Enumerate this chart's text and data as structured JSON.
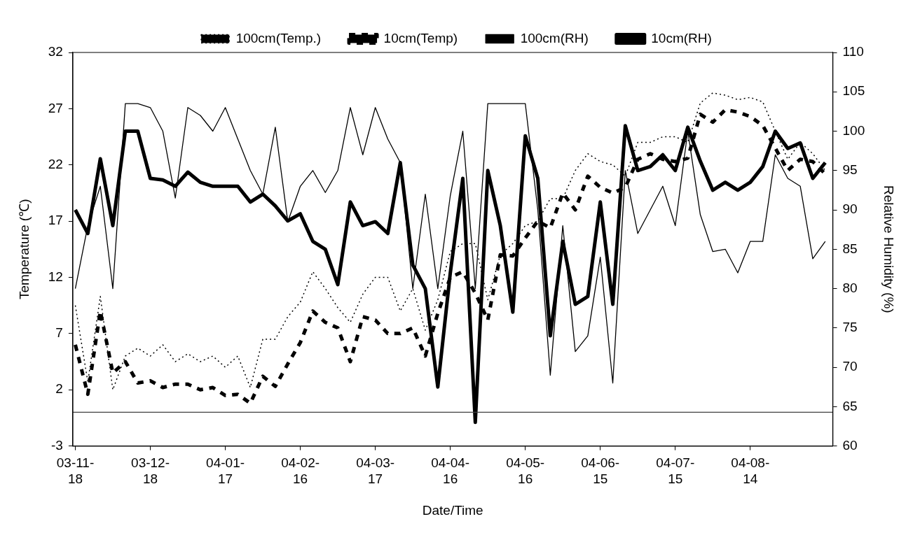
{
  "chart_data": {
    "type": "line",
    "xlabel": "Date/Time",
    "ylabel": "Temperature (℃)",
    "y2label": "Relative Humidity (%)",
    "x": [
      "2003-11-18",
      "2003-11-23",
      "2003-11-28",
      "2003-12-03",
      "2003-12-08",
      "2003-12-13",
      "2003-12-18",
      "2003-12-23",
      "2003-12-28",
      "2004-01-02",
      "2004-01-07",
      "2004-01-12",
      "2004-01-17",
      "2004-01-22",
      "2004-01-27",
      "2004-02-01",
      "2004-02-06",
      "2004-02-11",
      "2004-02-16",
      "2004-02-21",
      "2004-02-26",
      "2004-03-02",
      "2004-03-07",
      "2004-03-12",
      "2004-03-17",
      "2004-03-22",
      "2004-03-27",
      "2004-04-01",
      "2004-04-06",
      "2004-04-11",
      "2004-04-16",
      "2004-04-21",
      "2004-04-26",
      "2004-05-01",
      "2004-05-06",
      "2004-05-11",
      "2004-05-16",
      "2004-05-21",
      "2004-05-26",
      "2004-05-31",
      "2004-06-05",
      "2004-06-10",
      "2004-06-15",
      "2004-06-20",
      "2004-06-25",
      "2004-06-30",
      "2004-07-05",
      "2004-07-10",
      "2004-07-15",
      "2004-07-20",
      "2004-07-25",
      "2004-07-30",
      "2004-08-04",
      "2004-08-09",
      "2004-08-14",
      "2004-08-19",
      "2004-08-24",
      "2004-08-29",
      "2004-09-03",
      "2004-09-08",
      "2004-09-13"
    ],
    "series": [
      {
        "name": "100cm(Temp.)",
        "color": "#000000",
        "line_style": "dotted",
        "values": [
          9.5,
          2.7,
          10.3,
          2,
          5,
          5.7,
          5,
          6,
          4.5,
          5.2,
          4.5,
          5,
          4,
          5,
          2.2,
          6.5,
          6.5,
          8.5,
          9.8,
          12.5,
          11,
          9.3,
          8,
          10.5,
          12,
          12,
          9,
          11,
          7.3,
          10,
          14.3,
          15,
          15,
          10,
          14,
          15,
          16.6,
          17,
          19,
          19,
          21.5,
          23,
          22.3,
          22,
          21,
          24,
          24,
          24.5,
          24.5,
          24,
          27.5,
          28.4,
          28.2,
          27.8,
          28,
          27.6,
          25,
          22.5,
          24,
          23,
          21.5
        ]
      },
      {
        "name": "10cm(Temp)",
        "color": "#000000",
        "line_style": "dashed",
        "values": [
          6,
          1.6,
          9,
          3.5,
          4.5,
          2.6,
          2.8,
          2.2,
          2.5,
          2.5,
          2,
          2.2,
          1.5,
          1.6,
          0.8,
          3.2,
          2.3,
          4.3,
          6.2,
          9,
          8,
          7.5,
          4.5,
          8.5,
          8.2,
          7,
          7,
          7.5,
          5,
          8.8,
          12,
          12.5,
          10.6,
          8.2,
          14,
          13.9,
          15.5,
          17,
          16.4,
          19.5,
          18,
          21,
          20,
          19.5,
          20,
          22.5,
          23,
          22.5,
          22.3,
          22.6,
          26.5,
          25.8,
          26.9,
          26.7,
          26.3,
          25.5,
          23.5,
          21.5,
          22.5,
          22.3,
          21.2
        ]
      },
      {
        "name": "100cm(RH)",
        "color": "#000000",
        "line_style": "solid",
        "axis": "y2",
        "values": [
          80,
          88,
          93,
          80,
          103.5,
          103.5,
          103,
          100,
          91.5,
          103,
          102,
          100,
          103,
          99,
          95,
          92,
          100.5,
          88.5,
          93,
          95,
          92.2,
          95,
          103,
          97,
          103,
          99,
          96,
          80,
          92,
          80,
          91.8,
          100,
          80,
          103.5,
          103.5,
          103.5,
          103.5,
          90,
          69,
          88,
          72,
          74,
          84,
          68,
          95,
          87,
          90,
          93,
          88,
          100,
          89.4,
          84.7,
          85,
          82,
          86,
          86,
          97,
          94,
          93,
          83.8,
          86
        ]
      },
      {
        "name": "10cm(RH)",
        "color": "#000000",
        "line_style": "solid",
        "axis": "y2",
        "values": [
          90,
          87,
          96.5,
          88,
          100,
          100,
          94,
          93.8,
          93,
          94.8,
          93.5,
          93,
          93,
          93,
          91,
          92,
          90.5,
          88.6,
          89.5,
          86,
          85,
          80.5,
          91,
          88,
          88.5,
          87,
          96,
          83,
          80,
          67.5,
          82,
          94,
          63,
          95,
          88,
          77,
          99.4,
          94,
          74,
          86,
          78,
          79,
          91,
          78,
          100.7,
          95,
          95.5,
          97,
          95,
          100.5,
          96.2,
          92.5,
          93.5,
          92.5,
          93.5,
          95.5,
          100,
          97.8,
          98.5,
          94,
          96
        ]
      }
    ],
    "xlim": [
      "2003-11-17",
      "2004-09-16"
    ],
    "xticks": [
      {
        "value": "2003-11-18",
        "label": "03-11-18"
      },
      {
        "value": "2003-12-18",
        "label": "03-12-18"
      },
      {
        "value": "2004-01-17",
        "label": "04-01-17"
      },
      {
        "value": "2004-02-16",
        "label": "04-02-16"
      },
      {
        "value": "2004-03-17",
        "label": "04-03-17"
      },
      {
        "value": "2004-04-16",
        "label": "04-04-16"
      },
      {
        "value": "2004-05-16",
        "label": "04-05-16"
      },
      {
        "value": "2004-06-15",
        "label": "04-06-15"
      },
      {
        "value": "2004-07-15",
        "label": "04-07-15"
      },
      {
        "value": "2004-08-14",
        "label": "04-08-14"
      }
    ],
    "ylim": [
      -3,
      32
    ],
    "yticks": [
      -3,
      2,
      7,
      12,
      17,
      22,
      27,
      32
    ],
    "y2lim": [
      60,
      110
    ],
    "y2ticks": [
      60,
      65,
      70,
      75,
      80,
      85,
      90,
      95,
      100,
      105,
      110
    ],
    "ref_lines": [
      {
        "axis": "y",
        "value": 0,
        "color": "#404040"
      }
    ],
    "marker": "none",
    "grid": false,
    "legend": "top"
  }
}
